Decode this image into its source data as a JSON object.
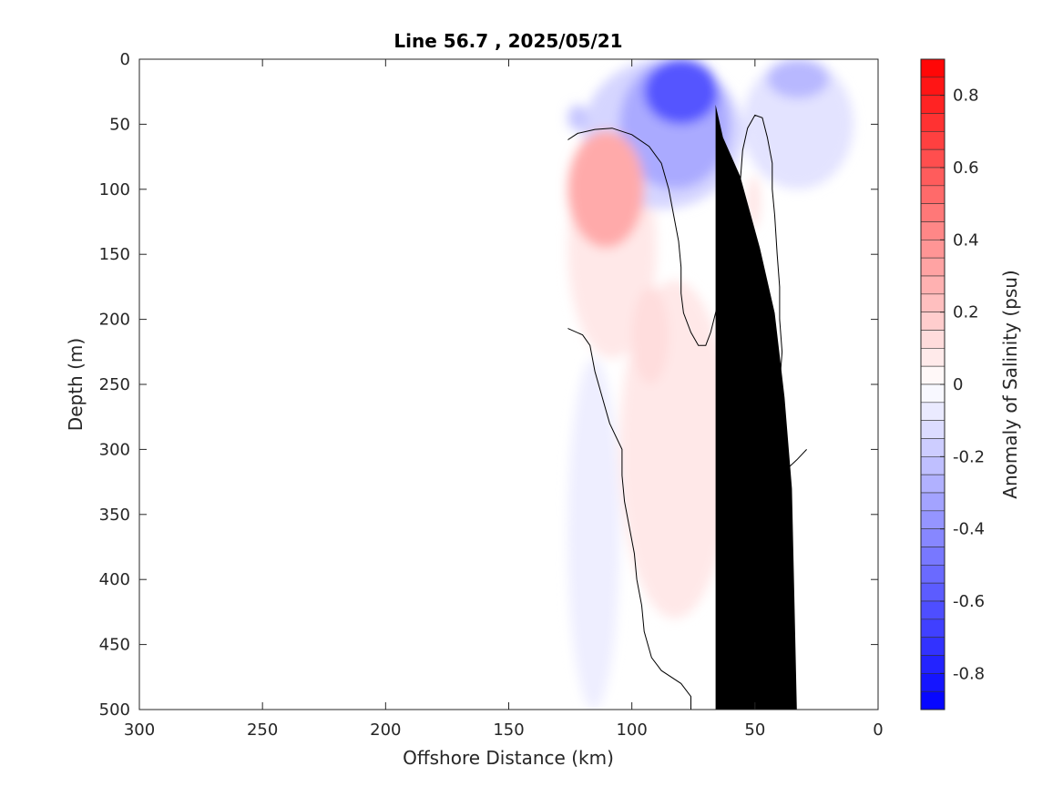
{
  "chart_data": {
    "type": "heatmap",
    "title": "Line 56.7 , 2025/05/21",
    "xlabel": "Offshore Distance (km)",
    "ylabel": "Depth (m)",
    "xlim": [
      300,
      0
    ],
    "ylim": [
      500,
      0
    ],
    "x_reversed": true,
    "y_reversed": true,
    "xticks": [
      "300",
      "250",
      "200",
      "150",
      "100",
      "50",
      "0"
    ],
    "yticks": [
      "0",
      "50",
      "100",
      "150",
      "200",
      "250",
      "300",
      "350",
      "400",
      "450",
      "500"
    ],
    "colorbar": {
      "label": "Anomaly of Salinity (psu)",
      "range": [
        -0.9,
        0.9
      ],
      "step": 0.05,
      "tick_labels": [
        "0.8",
        "0.6",
        "0.4",
        "0.2",
        "0",
        "-0.2",
        "-0.4",
        "-0.6",
        "-0.8"
      ],
      "tick_values": [
        0.8,
        0.6,
        0.4,
        0.2,
        0,
        -0.2,
        -0.4,
        -0.6,
        -0.8
      ],
      "colormap": "blue-white-red",
      "low_color": "#0000ff",
      "high_color": "#ff0000"
    },
    "data_extent": {
      "x": [
        0,
        126
      ],
      "depth": [
        0,
        500
      ]
    },
    "regions": [
      {
        "sign": "negative",
        "value": -0.6,
        "x": [
          65,
          95
        ],
        "depth": [
          0,
          50
        ]
      },
      {
        "sign": "negative",
        "value": -0.3,
        "x": [
          60,
          105
        ],
        "depth": [
          0,
          100
        ]
      },
      {
        "sign": "negative",
        "value": -0.15,
        "x": [
          55,
          120
        ],
        "depth": [
          0,
          115
        ]
      },
      {
        "sign": "negative",
        "value": -0.25,
        "x": [
          20,
          45
        ],
        "depth": [
          0,
          30
        ]
      },
      {
        "sign": "negative",
        "value": -0.1,
        "x": [
          10,
          55
        ],
        "depth": [
          0,
          100
        ]
      },
      {
        "sign": "negative",
        "value": -0.2,
        "x": [
          118,
          126
        ],
        "depth": [
          35,
          55
        ]
      },
      {
        "sign": "positive",
        "value": 0.3,
        "x": [
          95,
          126
        ],
        "depth": [
          55,
          145
        ]
      },
      {
        "sign": "positive",
        "value": 0.2,
        "x": [
          100,
          120
        ],
        "depth": [
          75,
          120
        ]
      },
      {
        "sign": "positive",
        "value": 0.08,
        "x": [
          90,
          126
        ],
        "depth": [
          60,
          230
        ]
      },
      {
        "sign": "positive",
        "value": 0.08,
        "x": [
          60,
          105
        ],
        "depth": [
          170,
          430
        ]
      },
      {
        "sign": "positive",
        "value": 0.12,
        "x": [
          85,
          100
        ],
        "depth": [
          175,
          250
        ]
      },
      {
        "sign": "positive",
        "value": 0.1,
        "x": [
          48,
          53
        ],
        "depth": [
          90,
          130
        ]
      },
      {
        "sign": "negative",
        "value": -0.06,
        "x": [
          105,
          126
        ],
        "depth": [
          230,
          500
        ]
      }
    ],
    "bathymetry": {
      "color": "#000000",
      "points": [
        [
          33,
          500
        ],
        [
          35,
          330
        ],
        [
          38,
          260
        ],
        [
          42,
          195
        ],
        [
          48,
          145
        ],
        [
          56,
          90
        ],
        [
          63,
          60
        ],
        [
          66,
          35
        ],
        [
          66,
          500
        ]
      ]
    },
    "zero_contours": [
      {
        "points": [
          [
            126,
            62
          ],
          [
            122,
            57
          ],
          [
            115,
            54
          ],
          [
            108,
            53
          ],
          [
            100,
            58
          ],
          [
            93,
            67
          ],
          [
            88,
            80
          ],
          [
            85,
            100
          ],
          [
            83,
            120
          ],
          [
            81,
            140
          ],
          [
            80,
            160
          ],
          [
            80,
            180
          ],
          [
            79,
            195
          ],
          [
            76,
            210
          ],
          [
            73,
            220
          ],
          [
            70,
            220
          ],
          [
            68,
            210
          ],
          [
            66,
            195
          ],
          [
            64,
            180
          ],
          [
            61,
            160
          ],
          [
            59,
            140
          ],
          [
            57,
            120
          ],
          [
            56,
            95
          ],
          [
            55,
            70
          ],
          [
            53,
            53
          ],
          [
            50,
            43
          ],
          [
            47,
            45
          ],
          [
            45,
            60
          ],
          [
            43,
            80
          ],
          [
            43,
            100
          ],
          [
            42,
            120
          ],
          [
            41,
            150
          ],
          [
            40,
            175
          ],
          [
            40,
            200
          ],
          [
            39,
            225
          ],
          [
            40,
            250
          ],
          [
            41,
            270
          ],
          [
            42,
            290
          ],
          [
            40,
            305
          ],
          [
            37,
            315
          ],
          [
            33,
            308
          ],
          [
            29,
            300
          ]
        ]
      },
      {
        "points": [
          [
            126,
            207
          ],
          [
            120,
            212
          ],
          [
            117,
            220
          ],
          [
            115,
            240
          ],
          [
            112,
            260
          ],
          [
            109,
            280
          ],
          [
            104,
            300
          ],
          [
            104,
            320
          ],
          [
            103,
            340
          ],
          [
            101,
            360
          ],
          [
            99,
            380
          ],
          [
            98,
            400
          ],
          [
            96,
            420
          ],
          [
            95,
            440
          ],
          [
            92,
            460
          ],
          [
            88,
            470
          ],
          [
            80,
            480
          ],
          [
            76,
            490
          ],
          [
            76,
            500
          ]
        ]
      }
    ]
  }
}
